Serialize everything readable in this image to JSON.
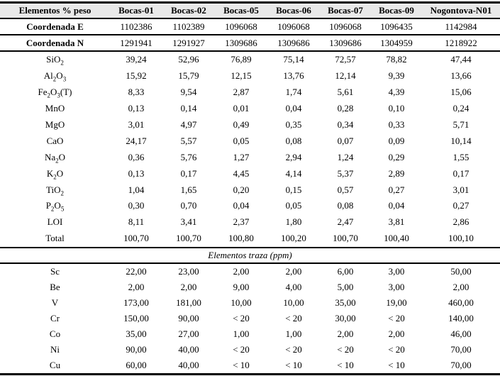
{
  "colors": {
    "header_bg": "#e9e9e9",
    "rule": "#000000",
    "text": "#000000",
    "page_bg": "#ffffff"
  },
  "table": {
    "header_label": "Elementos % peso",
    "sample_columns": [
      "Bocas-01",
      "Bocas-02",
      "Bocas-05",
      "Bocas-06",
      "Bocas-07",
      "Bocas-09",
      "Nogontova-N01"
    ],
    "coordinate_rows": [
      {
        "label": "Coordenada E",
        "values": [
          "1102386",
          "1102389",
          "1096068",
          "1096068",
          "1096068",
          "1096435",
          "1142984"
        ]
      },
      {
        "label": "Coordenada N",
        "values": [
          "1291941",
          "1291927",
          "1309686",
          "1309686",
          "1309686",
          "1304959",
          "1218922"
        ]
      }
    ],
    "major_element_rows": [
      {
        "label": "SiO~2~",
        "values": [
          "39,24",
          "52,96",
          "76,89",
          "75,14",
          "72,57",
          "78,82",
          "47,44"
        ]
      },
      {
        "label": "Al~2~O~3~",
        "values": [
          "15,92",
          "15,79",
          "12,15",
          "13,76",
          "12,14",
          "9,39",
          "13,66"
        ]
      },
      {
        "label": "Fe~2~O~3~(T)",
        "values": [
          "8,33",
          "9,54",
          "2,87",
          "1,74",
          "5,61",
          "4,39",
          "15,06"
        ]
      },
      {
        "label": "MnO",
        "values": [
          "0,13",
          "0,14",
          "0,01",
          "0,04",
          "0,28",
          "0,10",
          "0,24"
        ]
      },
      {
        "label": "MgO",
        "values": [
          "3,01",
          "4,97",
          "0,49",
          "0,35",
          "0,34",
          "0,33",
          "5,71"
        ]
      },
      {
        "label": "CaO",
        "values": [
          "24,17",
          "5,57",
          "0,05",
          "0,08",
          "0,07",
          "0,09",
          "10,14"
        ]
      },
      {
        "label": "Na~2~O",
        "values": [
          "0,36",
          "5,76",
          "1,27",
          "2,94",
          "1,24",
          "0,29",
          "1,55"
        ]
      },
      {
        "label": "K~2~O",
        "values": [
          "0,13",
          "0,17",
          "4,45",
          "4,14",
          "5,37",
          "2,89",
          "0,17"
        ]
      },
      {
        "label": "TiO~2~",
        "values": [
          "1,04",
          "1,65",
          "0,20",
          "0,15",
          "0,57",
          "0,27",
          "3,01"
        ]
      },
      {
        "label": "P~2~O~5~",
        "values": [
          "0,30",
          "0,70",
          "0,04",
          "0,05",
          "0,08",
          "0,04",
          "0,27"
        ]
      },
      {
        "label": "LOI",
        "values": [
          "8,11",
          "3,41",
          "2,37",
          "1,80",
          "2,47",
          "3,81",
          "2,86"
        ]
      },
      {
        "label": "Total",
        "values": [
          "100,70",
          "100,70",
          "100,80",
          "100,20",
          "100,70",
          "100,40",
          "100,10"
        ]
      }
    ],
    "trace_section_title": "Elementos traza (ppm)",
    "trace_element_rows": [
      {
        "label": "Sc",
        "values": [
          "22,00",
          "23,00",
          "2,00",
          "2,00",
          "6,00",
          "3,00",
          "50,00"
        ]
      },
      {
        "label": "Be",
        "values": [
          "2,00",
          "2,00",
          "9,00",
          "4,00",
          "5,00",
          "3,00",
          "2,00"
        ]
      },
      {
        "label": "V",
        "values": [
          "173,00",
          "181,00",
          "10,00",
          "10,00",
          "35,00",
          "19,00",
          "460,00"
        ]
      },
      {
        "label": "Cr",
        "values": [
          "150,00",
          "90,00",
          "< 20",
          "< 20",
          "30,00",
          "< 20",
          "140,00"
        ]
      },
      {
        "label": "Co",
        "values": [
          "35,00",
          "27,00",
          "1,00",
          "1,00",
          "2,00",
          "2,00",
          "46,00"
        ]
      },
      {
        "label": "Ni",
        "values": [
          "90,00",
          "40,00",
          "< 20",
          "< 20",
          "< 20",
          "< 20",
          "70,00"
        ]
      },
      {
        "label": "Cu",
        "values": [
          "60,00",
          "40,00",
          "< 10",
          "< 10",
          "< 10",
          "< 10",
          "70,00"
        ]
      }
    ]
  }
}
